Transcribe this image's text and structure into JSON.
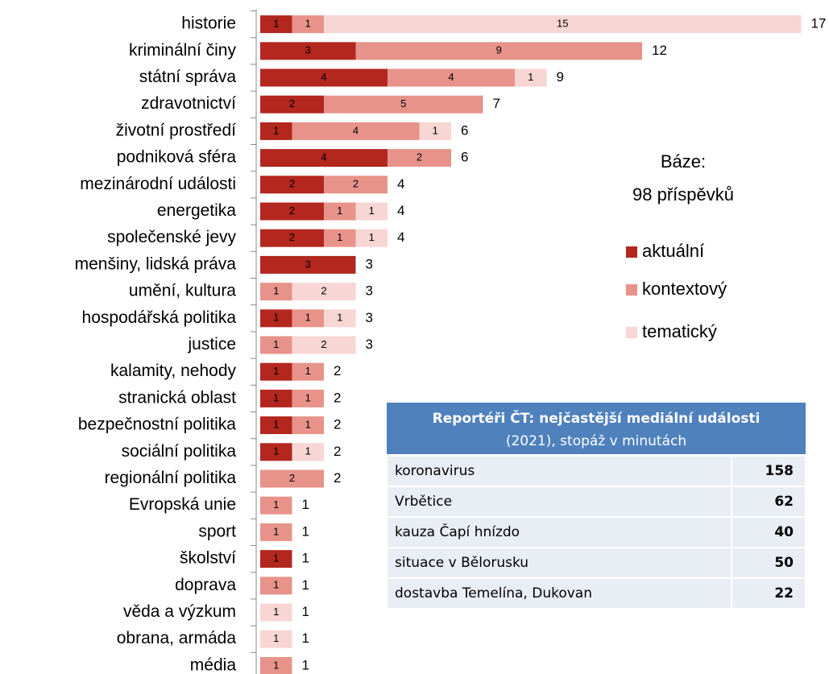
{
  "chart_data": {
    "type": "bar",
    "orientation": "horizontal",
    "stacked": true,
    "categories": [
      "historie",
      "kriminální činy",
      "státní správa",
      "zdravotnictví",
      "životní prostředí",
      "podniková sféra",
      "mezinárodní události",
      "energetika",
      "společenské jevy",
      "menšiny, lidská práva",
      "umění, kultura",
      "hospodářská politika",
      "justice",
      "kalamity, nehody",
      "stranická oblast",
      "bezpečnostní politika",
      "sociální politika",
      "regionální politika",
      "Evropská unie",
      "sport",
      "školství",
      "doprava",
      "věda a výzkum",
      "obrana, armáda",
      "média"
    ],
    "series": [
      {
        "name": "aktuální",
        "color": "#b3271f",
        "values": [
          1,
          3,
          4,
          2,
          1,
          4,
          2,
          2,
          2,
          3,
          null,
          1,
          null,
          1,
          1,
          1,
          1,
          null,
          null,
          null,
          1,
          null,
          null,
          null,
          null
        ]
      },
      {
        "name": "kontextový",
        "color": "#e8938a",
        "values": [
          1,
          9,
          4,
          5,
          4,
          2,
          2,
          1,
          1,
          null,
          1,
          1,
          1,
          1,
          1,
          1,
          null,
          2,
          1,
          1,
          null,
          1,
          null,
          null,
          1
        ]
      },
      {
        "name": "tematický",
        "color": "#f7d6d3",
        "values": [
          15,
          null,
          1,
          null,
          1,
          null,
          null,
          1,
          1,
          null,
          2,
          1,
          2,
          null,
          null,
          null,
          1,
          null,
          null,
          null,
          null,
          null,
          1,
          1,
          null
        ]
      }
    ],
    "totals": [
      17,
      12,
      9,
      7,
      6,
      6,
      4,
      4,
      4,
      3,
      3,
      3,
      3,
      2,
      2,
      2,
      2,
      2,
      1,
      1,
      1,
      1,
      1,
      1,
      1
    ],
    "annotation": {
      "line1": "Báze:",
      "line2": "98 příspěvků"
    },
    "legend": "right"
  },
  "table": {
    "title": "Reportéři ČT: nejčastější mediální události",
    "subtitle": "(2021), stopáž v minutách",
    "rows": [
      [
        "koronavirus",
        158
      ],
      [
        "Vrbětice",
        62
      ],
      [
        "kauza Čapí hnízdo",
        40
      ],
      [
        "situace v Bělorusku",
        50
      ],
      [
        "dostavba Temelína, Dukovan",
        22
      ]
    ]
  }
}
